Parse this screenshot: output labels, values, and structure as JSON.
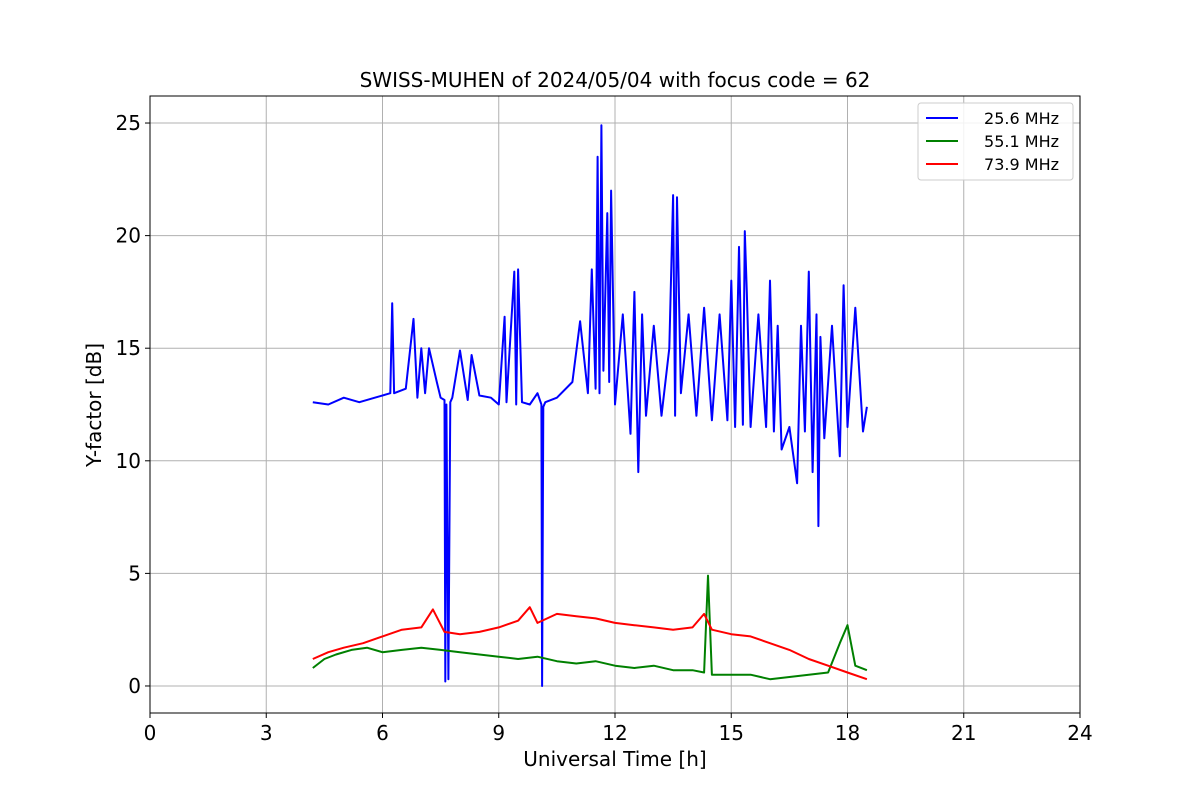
{
  "chart_data": {
    "type": "line",
    "title": "SWISS-MUHEN of 2024/05/04 with focus code = 62",
    "xlabel": "Universal Time [h]",
    "ylabel": "Y-factor [dB]",
    "xlim": [
      0,
      24
    ],
    "ylim": [
      -1.2,
      26.2
    ],
    "xticks": [
      "0",
      "3",
      "6",
      "9",
      "12",
      "15",
      "18",
      "21",
      "24"
    ],
    "yticks": [
      "0",
      "5",
      "10",
      "15",
      "20",
      "25"
    ],
    "grid": true,
    "legend_position": "top-right",
    "series": [
      {
        "name": "25.6 MHz",
        "color": "#0000ff",
        "x": [
          4.2,
          4.6,
          5.0,
          5.4,
          5.8,
          6.2,
          6.25,
          6.3,
          6.6,
          6.8,
          6.9,
          7.0,
          7.1,
          7.2,
          7.4,
          7.5,
          7.6,
          7.62,
          7.65,
          7.7,
          7.75,
          7.8,
          8.0,
          8.2,
          8.3,
          8.5,
          8.8,
          9.0,
          9.15,
          9.2,
          9.4,
          9.45,
          9.5,
          9.6,
          9.8,
          10.0,
          10.1,
          10.12,
          10.15,
          10.2,
          10.5,
          10.9,
          11.1,
          11.3,
          11.4,
          11.5,
          11.55,
          11.6,
          11.65,
          11.7,
          11.8,
          11.85,
          11.9,
          12.0,
          12.2,
          12.4,
          12.5,
          12.6,
          12.7,
          12.8,
          13.0,
          13.2,
          13.4,
          13.5,
          13.55,
          13.6,
          13.7,
          13.9,
          14.1,
          14.3,
          14.5,
          14.7,
          14.9,
          15.0,
          15.1,
          15.2,
          15.3,
          15.35,
          15.4,
          15.5,
          15.7,
          15.9,
          16.0,
          16.1,
          16.2,
          16.3,
          16.5,
          16.7,
          16.8,
          16.9,
          17.0,
          17.1,
          17.2,
          17.25,
          17.3,
          17.4,
          17.6,
          17.8,
          17.9,
          18.0,
          18.2,
          18.4,
          18.5
        ],
        "values": [
          12.6,
          12.5,
          12.8,
          12.6,
          12.8,
          13.0,
          17.0,
          13.0,
          13.2,
          16.3,
          12.8,
          15.0,
          13.0,
          15.0,
          13.5,
          12.8,
          12.7,
          0.2,
          12.5,
          0.3,
          12.6,
          12.8,
          14.9,
          12.7,
          14.7,
          12.9,
          12.8,
          12.5,
          16.4,
          12.6,
          18.4,
          12.5,
          18.5,
          12.6,
          12.5,
          13.0,
          12.5,
          0.0,
          12.4,
          12.6,
          12.8,
          13.5,
          16.2,
          13.0,
          18.5,
          13.2,
          23.5,
          13.0,
          24.9,
          14.0,
          21.0,
          13.5,
          22.0,
          12.5,
          16.5,
          11.2,
          17.5,
          9.5,
          16.5,
          12.0,
          16.0,
          12.0,
          15.0,
          21.8,
          12.0,
          21.7,
          13.0,
          16.5,
          12.0,
          16.8,
          11.8,
          16.5,
          11.8,
          18.0,
          11.5,
          19.5,
          11.6,
          20.2,
          17.5,
          11.5,
          16.5,
          11.5,
          18.0,
          11.3,
          16.0,
          10.5,
          11.5,
          9.0,
          16.0,
          11.3,
          18.4,
          9.5,
          16.5,
          7.1,
          15.5,
          11.0,
          16.0,
          10.2,
          17.8,
          11.5,
          16.8,
          11.3,
          12.4
        ]
      },
      {
        "name": "55.1 MHz",
        "color": "#008000",
        "x": [
          4.2,
          4.5,
          4.8,
          5.2,
          5.6,
          6.0,
          6.5,
          7.0,
          7.5,
          8.0,
          8.5,
          9.0,
          9.5,
          10.0,
          10.5,
          11.0,
          11.5,
          12.0,
          12.5,
          13.0,
          13.5,
          14.0,
          14.3,
          14.4,
          14.5,
          15.0,
          15.5,
          16.0,
          16.5,
          17.0,
          17.5,
          17.8,
          18.0,
          18.2,
          18.5
        ],
        "values": [
          0.8,
          1.2,
          1.4,
          1.6,
          1.7,
          1.5,
          1.6,
          1.7,
          1.6,
          1.5,
          1.4,
          1.3,
          1.2,
          1.3,
          1.1,
          1.0,
          1.1,
          0.9,
          0.8,
          0.9,
          0.7,
          0.7,
          0.6,
          4.9,
          0.5,
          0.5,
          0.5,
          0.3,
          0.4,
          0.5,
          0.6,
          1.9,
          2.7,
          0.9,
          0.7
        ]
      },
      {
        "name": "73.9 MHz",
        "color": "#ff0000",
        "x": [
          4.2,
          4.6,
          5.0,
          5.5,
          6.0,
          6.5,
          7.0,
          7.3,
          7.6,
          8.0,
          8.5,
          9.0,
          9.5,
          9.8,
          10.0,
          10.5,
          11.0,
          11.5,
          12.0,
          12.5,
          13.0,
          13.5,
          14.0,
          14.3,
          14.5,
          15.0,
          15.5,
          16.0,
          16.5,
          17.0,
          17.5,
          18.0,
          18.5
        ],
        "values": [
          1.2,
          1.5,
          1.7,
          1.9,
          2.2,
          2.5,
          2.6,
          3.4,
          2.4,
          2.3,
          2.4,
          2.6,
          2.9,
          3.5,
          2.8,
          3.2,
          3.1,
          3.0,
          2.8,
          2.7,
          2.6,
          2.5,
          2.6,
          3.2,
          2.5,
          2.3,
          2.2,
          1.9,
          1.6,
          1.2,
          0.9,
          0.6,
          0.3
        ]
      }
    ]
  }
}
